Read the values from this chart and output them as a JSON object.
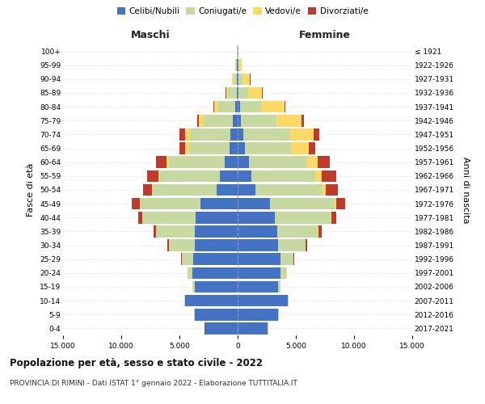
{
  "age_groups": [
    "0-4",
    "5-9",
    "10-14",
    "15-19",
    "20-24",
    "25-29",
    "30-34",
    "35-39",
    "40-44",
    "45-49",
    "50-54",
    "55-59",
    "60-64",
    "65-69",
    "70-74",
    "75-79",
    "80-84",
    "85-89",
    "90-94",
    "95-99",
    "100+"
  ],
  "birth_years": [
    "2017-2021",
    "2012-2016",
    "2007-2011",
    "2002-2006",
    "1997-2001",
    "1992-1996",
    "1987-1991",
    "1982-1986",
    "1977-1981",
    "1972-1976",
    "1967-1971",
    "1962-1966",
    "1957-1961",
    "1952-1956",
    "1947-1951",
    "1942-1946",
    "1937-1941",
    "1932-1936",
    "1927-1931",
    "1922-1926",
    "≤ 1921"
  ],
  "maschi": {
    "celibi": [
      2800,
      3700,
      4500,
      3700,
      3900,
      3800,
      3700,
      3700,
      3600,
      3200,
      1800,
      1500,
      1100,
      700,
      600,
      400,
      200,
      100,
      80,
      50,
      20
    ],
    "coniugati": [
      10,
      20,
      50,
      150,
      400,
      1000,
      2200,
      3300,
      4600,
      5200,
      5500,
      5200,
      4800,
      3500,
      3500,
      2500,
      1500,
      700,
      300,
      100,
      30
    ],
    "vedovi": [
      2,
      2,
      5,
      5,
      5,
      10,
      10,
      10,
      20,
      30,
      50,
      100,
      200,
      300,
      400,
      400,
      300,
      200,
      100,
      50,
      10
    ],
    "divorziati": [
      2,
      2,
      5,
      10,
      20,
      50,
      100,
      200,
      300,
      700,
      800,
      1000,
      900,
      500,
      500,
      200,
      80,
      50,
      30,
      20,
      5
    ]
  },
  "femmine": {
    "nubili": [
      2600,
      3500,
      4300,
      3500,
      3700,
      3700,
      3500,
      3400,
      3200,
      2800,
      1500,
      1200,
      1000,
      600,
      500,
      300,
      200,
      100,
      80,
      50,
      20
    ],
    "coniugate": [
      10,
      20,
      50,
      150,
      500,
      1100,
      2300,
      3500,
      4800,
      5500,
      5800,
      5500,
      5000,
      4000,
      4000,
      3000,
      1800,
      800,
      350,
      100,
      30
    ],
    "vedove": [
      2,
      2,
      5,
      5,
      5,
      10,
      20,
      40,
      80,
      150,
      300,
      500,
      900,
      1500,
      2000,
      2200,
      2000,
      1200,
      600,
      200,
      30
    ],
    "divorziate": [
      2,
      2,
      5,
      10,
      25,
      60,
      150,
      250,
      400,
      800,
      1000,
      1300,
      1000,
      600,
      500,
      200,
      100,
      80,
      50,
      20,
      5
    ]
  },
  "colors": {
    "celibi": "#4472c4",
    "coniugati": "#c5d9a0",
    "vedovi": "#ffd966",
    "divorziati": "#c0392b"
  },
  "xlim": 15000,
  "xticks": [
    -15000,
    -10000,
    -5000,
    0,
    5000,
    10000,
    15000
  ],
  "xticklabels": [
    "15.000",
    "10.000",
    "5.000",
    "0",
    "5.000",
    "10.000",
    "15.000"
  ],
  "title": "Popolazione per età, sesso e stato civile - 2022",
  "subtitle": "PROVINCIA DI RIMINI - Dati ISTAT 1° gennaio 2022 - Elaborazione TUTTITALIA.IT",
  "ylabel_left": "Fasce di età",
  "ylabel_right": "Anni di nascita",
  "label_maschi": "Maschi",
  "label_femmine": "Femmine",
  "legend_labels": [
    "Celibi/Nubili",
    "Coniugati/e",
    "Vedovi/e",
    "Divorziati/e"
  ]
}
